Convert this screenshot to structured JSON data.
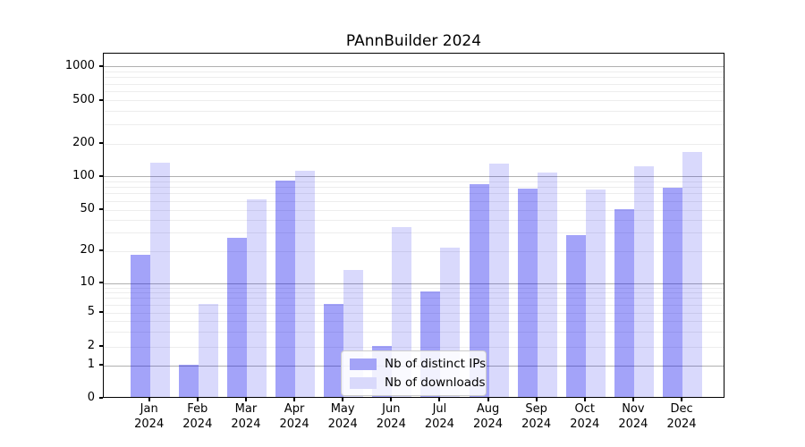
{
  "title": "PAnnBuilder 2024",
  "colors": {
    "distinct_ips_bar": "#a3a3f7",
    "downloads_bar": "#d9d9fb",
    "distinct_ips_rgba": "rgba(0,0,238,0.36)",
    "downloads_rgba": "rgba(0,0,235,0.15)",
    "major_grid": "#b0b0b0",
    "minor_grid": "#ededed"
  },
  "chart_data": {
    "type": "bar",
    "title": "PAnnBuilder 2024",
    "xlabel": "",
    "ylabel": "",
    "yscale": "log-like (0,1,2,5,10,20,50,100,200,500,1000)",
    "ylim": [
      0,
      1320
    ],
    "grid": true,
    "legend_position": "inside lower-center",
    "yticks": [
      0,
      1,
      2,
      5,
      10,
      20,
      50,
      100,
      200,
      500,
      1000
    ],
    "categories": [
      {
        "month": "Jan",
        "year": "2024"
      },
      {
        "month": "Feb",
        "year": "2024"
      },
      {
        "month": "Mar",
        "year": "2024"
      },
      {
        "month": "Apr",
        "year": "2024"
      },
      {
        "month": "May",
        "year": "2024"
      },
      {
        "month": "Jun",
        "year": "2024"
      },
      {
        "month": "Jul",
        "year": "2024"
      },
      {
        "month": "Aug",
        "year": "2024"
      },
      {
        "month": "Sep",
        "year": "2024"
      },
      {
        "month": "Oct",
        "year": "2024"
      },
      {
        "month": "Nov",
        "year": "2024"
      },
      {
        "month": "Dec",
        "year": "2024"
      }
    ],
    "series": [
      {
        "name": "Nb of distinct IPs",
        "color_hex": "#a3a3f7",
        "color_rgba": "rgba(0,0,238,0.36)",
        "values": [
          18,
          1,
          26,
          89,
          6,
          2,
          8,
          83,
          76,
          28,
          50,
          77
        ]
      },
      {
        "name": "Nb of downloads",
        "color_hex": "#d9d9fb",
        "color_rgba": "rgba(0,0,235,0.15)",
        "values": [
          130,
          6,
          61,
          111,
          13,
          33,
          21,
          128,
          105,
          75,
          122,
          165
        ]
      }
    ]
  }
}
